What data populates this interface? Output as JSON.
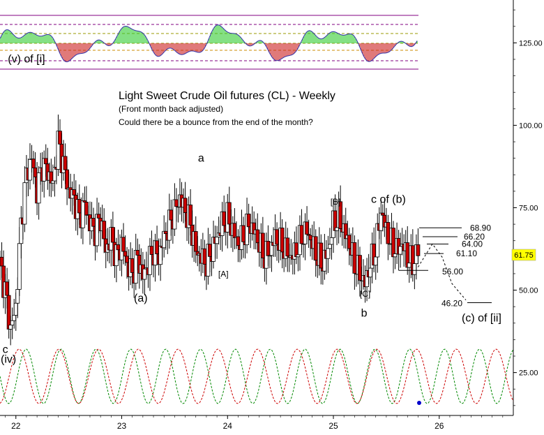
{
  "chart_data": {
    "type": "candlestick",
    "title": "Light Sweet Crude Oil futures (CL) - Weekly",
    "subtitle": "(Front month back adjusted)",
    "annotation_question": "Could there be a bounce from the end of the month?",
    "x_ticks": [
      "22",
      "23",
      "24",
      "25",
      "26"
    ],
    "y_ticks": [
      "125.00",
      "100.00",
      "75.00",
      "50.00",
      "25.00"
    ],
    "xlim": [
      21.85,
      26.7
    ],
    "ylim": [
      12,
      138
    ],
    "last_price": "61.75",
    "colors": {
      "up": "#ffffff",
      "down": "#cc0000",
      "wick": "#000000",
      "price_box": "#ffff00"
    },
    "price_series": [
      [
        21.85,
        58
      ],
      [
        21.9,
        50
      ],
      [
        21.95,
        38
      ],
      [
        22.0,
        45
      ],
      [
        22.05,
        70
      ],
      [
        22.1,
        85
      ],
      [
        22.15,
        90
      ],
      [
        22.2,
        80
      ],
      [
        22.25,
        88
      ],
      [
        22.3,
        86
      ],
      [
        22.35,
        82
      ],
      [
        22.4,
        95
      ],
      [
        22.45,
        88
      ],
      [
        22.5,
        80
      ],
      [
        22.55,
        78
      ],
      [
        22.6,
        72
      ],
      [
        22.65,
        76
      ],
      [
        22.7,
        70
      ],
      [
        22.75,
        68
      ],
      [
        22.8,
        72
      ],
      [
        22.85,
        62
      ],
      [
        22.9,
        66
      ],
      [
        22.95,
        60
      ],
      [
        23.0,
        64
      ],
      [
        23.05,
        58
      ],
      [
        23.1,
        55
      ],
      [
        23.15,
        60
      ],
      [
        23.2,
        54
      ],
      [
        23.25,
        58
      ],
      [
        23.3,
        62
      ],
      [
        23.35,
        60
      ],
      [
        23.4,
        66
      ],
      [
        23.45,
        70
      ],
      [
        23.5,
        74
      ],
      [
        23.55,
        78
      ],
      [
        23.6,
        74
      ],
      [
        23.65,
        70
      ],
      [
        23.7,
        62
      ],
      [
        23.75,
        60
      ],
      [
        23.8,
        58
      ],
      [
        23.85,
        62
      ],
      [
        23.9,
        66
      ],
      [
        23.95,
        70
      ],
      [
        24.0,
        72
      ],
      [
        24.05,
        68
      ],
      [
        24.1,
        64
      ],
      [
        24.15,
        66
      ],
      [
        24.2,
        70
      ],
      [
        24.25,
        68
      ],
      [
        24.3,
        64
      ],
      [
        24.35,
        60
      ],
      [
        24.4,
        62
      ],
      [
        24.45,
        66
      ],
      [
        24.5,
        64
      ],
      [
        24.55,
        62
      ],
      [
        24.6,
        60
      ],
      [
        24.65,
        62
      ],
      [
        24.7,
        66
      ],
      [
        24.75,
        68
      ],
      [
        24.8,
        64
      ],
      [
        24.85,
        60
      ],
      [
        24.9,
        58
      ],
      [
        24.95,
        62
      ],
      [
        25.0,
        70
      ],
      [
        25.05,
        72
      ],
      [
        25.1,
        68
      ],
      [
        25.15,
        64
      ],
      [
        25.2,
        58
      ],
      [
        25.25,
        55
      ],
      [
        25.3,
        52
      ],
      [
        25.35,
        58
      ],
      [
        25.4,
        62
      ],
      [
        25.45,
        74
      ],
      [
        25.5,
        68
      ],
      [
        25.55,
        64
      ],
      [
        25.6,
        62
      ],
      [
        25.65,
        64
      ],
      [
        25.7,
        60
      ],
      [
        25.75,
        58
      ],
      [
        25.8,
        62
      ]
    ],
    "targets": [
      {
        "value": 68.9,
        "label": "68.90"
      },
      {
        "value": 66.2,
        "label": "66.20"
      },
      {
        "value": 64.0,
        "label": "64.00"
      },
      {
        "value": 61.1,
        "label": "61.10"
      },
      {
        "value": 56.0,
        "label": "56.00"
      },
      {
        "value": 46.2,
        "label": "46.20"
      }
    ],
    "wave_labels": [
      {
        "text": "(v) of [i]",
        "x": 22.1,
        "y": 119
      },
      {
        "text": "a",
        "x": 23.75,
        "y": 89
      },
      {
        "text": "[B]",
        "x": 25.02,
        "y": 76
      },
      {
        "text": "c of (b)",
        "x": 25.52,
        "y": 76.5
      },
      {
        "text": "[A]",
        "x": 23.96,
        "y": 54
      },
      {
        "text": "(a)",
        "x": 23.18,
        "y": 46.5
      },
      {
        "text": "[C]",
        "x": 25.3,
        "y": 48
      },
      {
        "text": "b",
        "x": 25.29,
        "y": 42
      },
      {
        "text": "(c) of [ii]",
        "x": 26.4,
        "y": 40.5
      },
      {
        "text": "c",
        "x": 21.9,
        "y": 31
      },
      {
        "text": "(iv)",
        "x": 21.93,
        "y": 28
      }
    ],
    "oscillator": {
      "type": "histogram",
      "description": "momentum histogram with horizontal bands"
    },
    "cycle_lines": {
      "colors": [
        "#cc0000",
        "#008800"
      ]
    }
  }
}
